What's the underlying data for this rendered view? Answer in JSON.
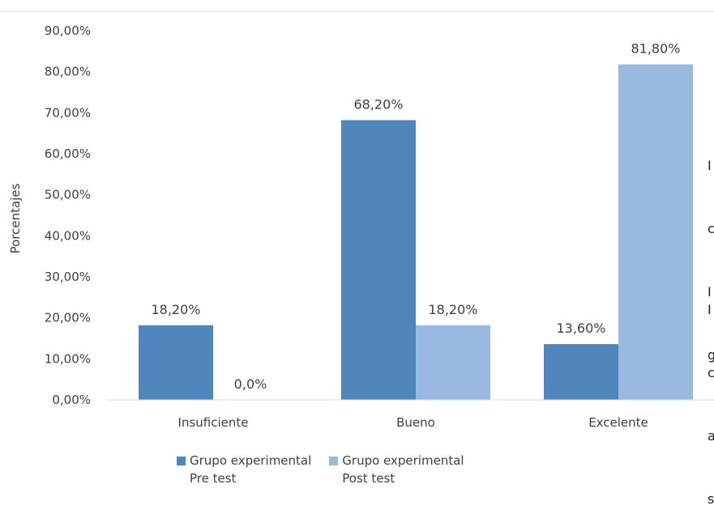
{
  "chart_data": {
    "type": "bar",
    "categories": [
      "Insuficiente",
      "Bueno",
      "Excelente"
    ],
    "series": [
      {
        "name": "Grupo experimental Pre test",
        "values": [
          18.2,
          68.2,
          13.6
        ],
        "labels": [
          "18,20%",
          "68,20%",
          "13,60%"
        ],
        "color": "#4f86bc"
      },
      {
        "name": "Grupo experimental Post test",
        "values": [
          0.0,
          18.2,
          81.8
        ],
        "labels": [
          "0,0%",
          "18,20%",
          "81,80%"
        ],
        "color": "#9ab9e0"
      }
    ],
    "ylabel": "Porcentajes",
    "xlabel": "",
    "ylim": [
      0,
      90
    ],
    "yticks": [
      "0,00%",
      "10,00%",
      "20,00%",
      "30,00%",
      "40,00%",
      "50,00%",
      "60,00%",
      "70,00%",
      "80,00%",
      "90,00%"
    ],
    "legend_position": "bottom",
    "grid": false
  },
  "legend": {
    "pre_line1": "Grupo experimental",
    "pre_line2": "Pre test",
    "post_line1": "Grupo experimental",
    "post_line2": "Post test"
  },
  "side_text": {
    "block1": [
      "I",
      "c",
      "I",
      "g"
    ],
    "block2": [
      "I",
      "c",
      "a",
      "s"
    ]
  }
}
